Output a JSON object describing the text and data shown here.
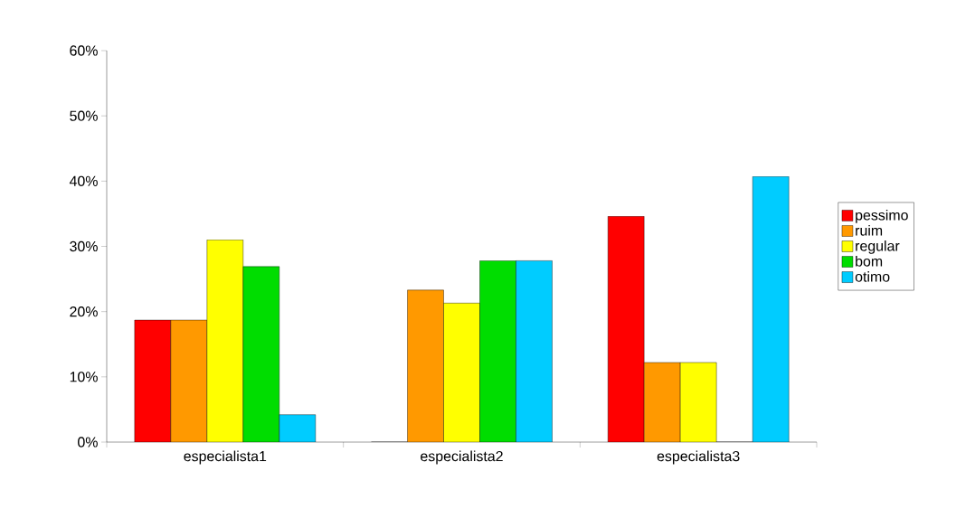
{
  "chart_data": {
    "type": "bar",
    "categories": [
      "especialista1",
      "especialista2",
      "especialista3"
    ],
    "series": [
      {
        "name": "pessimo",
        "color": "#ff0000",
        "values": [
          18.7,
          0,
          34.6
        ]
      },
      {
        "name": "ruim",
        "color": "#ff9900",
        "values": [
          18.7,
          23.3,
          12.2
        ]
      },
      {
        "name": "regular",
        "color": "#ffff00",
        "values": [
          31.0,
          21.3,
          12.2
        ]
      },
      {
        "name": "bom",
        "color": "#00dd00",
        "values": [
          26.9,
          27.8,
          0
        ]
      },
      {
        "name": "otimo",
        "color": "#00ccff",
        "values": [
          4.2,
          27.8,
          40.7
        ]
      }
    ],
    "ylim": [
      0,
      60
    ],
    "yticks": [
      {
        "value": 0,
        "label": "0%"
      },
      {
        "value": 10,
        "label": "10%"
      },
      {
        "value": 20,
        "label": "20%"
      },
      {
        "value": 30,
        "label": "30%"
      },
      {
        "value": 40,
        "label": "40%"
      },
      {
        "value": 50,
        "label": "50%"
      },
      {
        "value": 60,
        "label": "60%"
      }
    ],
    "grid": false,
    "legend": "right"
  }
}
